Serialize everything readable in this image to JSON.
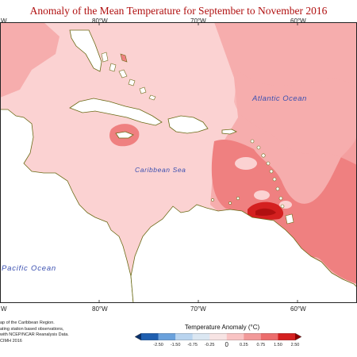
{
  "title": "Anomaly of the Mean Temperature for September to November 2016",
  "axis_labels_top": [
    "80°W",
    "70°W",
    "60°W"
  ],
  "axis_labels_bottom": [
    "80°W",
    "70°W",
    "60°W"
  ],
  "edge_label_top_left": "W",
  "edge_label_bottom_left": "W",
  "place_labels": {
    "atlantic": "Atlantic Ocean",
    "caribbean": "Caribbean Sea",
    "pacific": "Pacific Ocean"
  },
  "credits": [
    "ap of the Caribbean Region.",
    "ating station based observations,",
    "with NCEP/NCAR Reanalysis Data.",
    "CIMH 2016"
  ],
  "legend": {
    "title": "Temperature Anomaly (°C)",
    "labels": [
      "-2.50",
      "-1.50",
      "-0.75",
      "-0.25",
      "0",
      "0.25",
      "0.75",
      "1.50",
      "2.50"
    ],
    "colors": [
      "#08306b",
      "#1f5fb0",
      "#6aa1dc",
      "#b9d4ef",
      "#dbe7f2",
      "#f7e4e4",
      "#f9c4c4",
      "#f29a9a",
      "#ec6d6d",
      "#d42020",
      "#8b0000"
    ]
  },
  "colors": {
    "land": "#ffffff",
    "coast": "#6b6b16",
    "anomaly_light": "#fbd2d2",
    "anomaly_medium": "#f6adad",
    "anomaly_strong": "#ef8080",
    "anomaly_very_strong": "#d42020",
    "anomaly_negative": "#c8dcf2",
    "title": "#b01010",
    "ocean_label": "#3a4fb0"
  }
}
